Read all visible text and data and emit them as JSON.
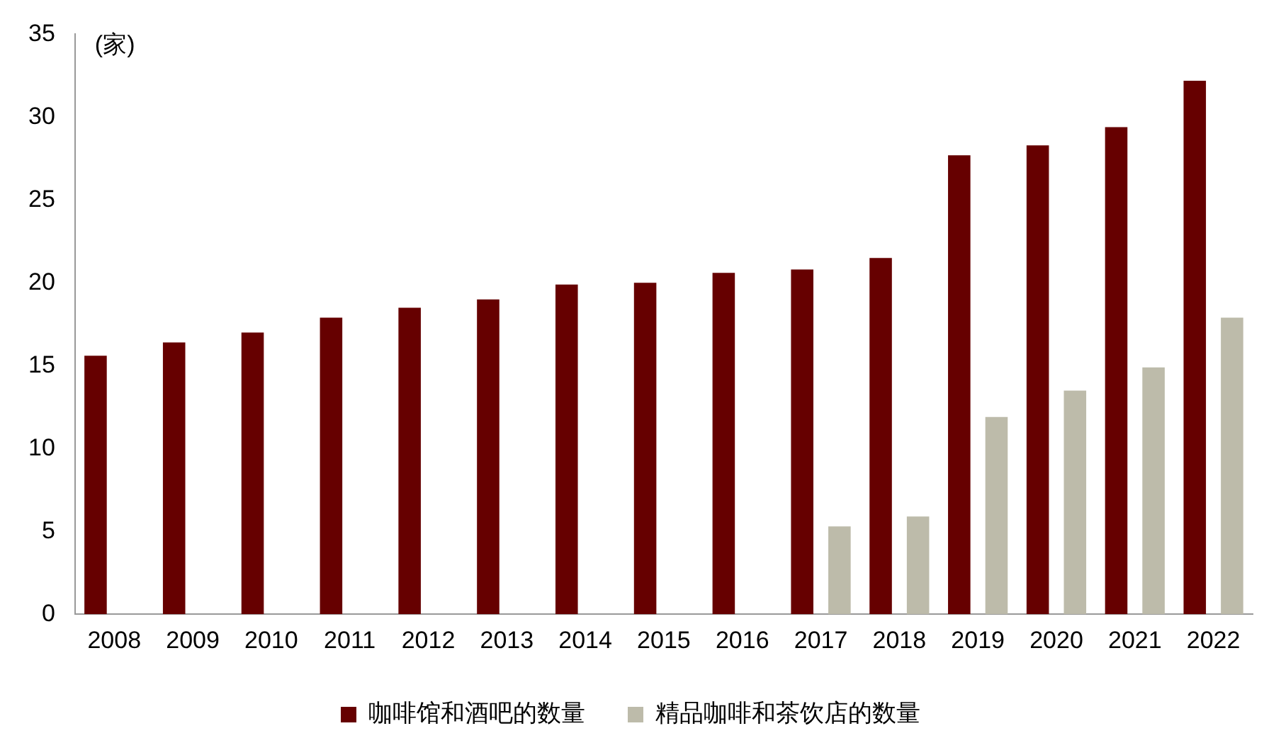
{
  "chart_data": {
    "type": "bar",
    "ylabel": "(家)",
    "categories": [
      "2008",
      "2009",
      "2010",
      "2011",
      "2012",
      "2013",
      "2014",
      "2015",
      "2016",
      "2017",
      "2018",
      "2019",
      "2020",
      "2021",
      "2022"
    ],
    "series": [
      {
        "name": "咖啡馆和酒吧的数量",
        "color": "#660000",
        "values": [
          15.6,
          16.4,
          17.0,
          17.9,
          18.5,
          19.0,
          19.9,
          20.0,
          20.6,
          20.8,
          21.5,
          27.7,
          28.3,
          29.4,
          32.2
        ]
      },
      {
        "name": "精品咖啡和茶饮店的数量",
        "color": "#bdbbaa",
        "values": [
          null,
          null,
          null,
          null,
          null,
          null,
          null,
          null,
          null,
          5.3,
          5.9,
          11.9,
          13.5,
          14.9,
          17.9
        ]
      }
    ],
    "ylim": [
      0,
      35
    ],
    "yticks": [
      0,
      5,
      10,
      15,
      20,
      25,
      30,
      35
    ],
    "grid": false,
    "legend": "bottom"
  }
}
